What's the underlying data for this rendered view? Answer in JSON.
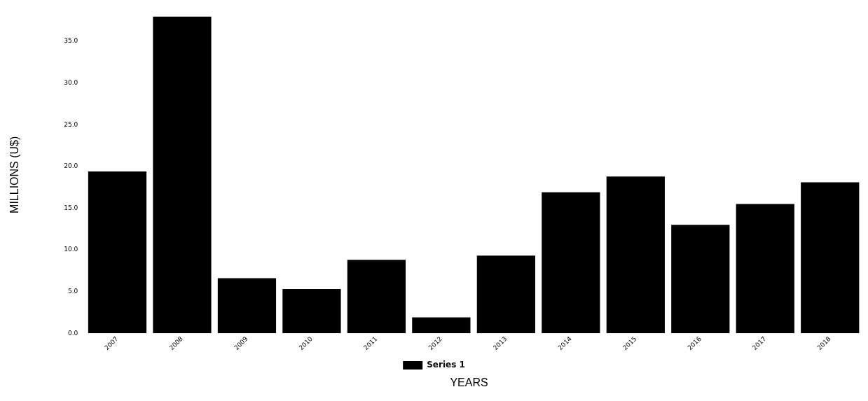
{
  "chart_data": {
    "type": "bar",
    "categories": [
      "2007",
      "2008",
      "2009",
      "2010",
      "2011",
      "2012",
      "2013",
      "2014",
      "2015",
      "2016",
      "2017",
      "2018"
    ],
    "series": [
      {
        "name": "Series 1",
        "color": "#000000",
        "values": [
          19.4,
          38.0,
          6.6,
          5.3,
          8.8,
          1.9,
          9.3,
          16.9,
          18.8,
          13.0,
          15.5,
          18.1
        ]
      }
    ],
    "xlabel": "YEARS",
    "ylabel": "MILLIONS (U$)",
    "ylim": [
      0,
      38
    ],
    "yticks": [
      {
        "value": 0,
        "label": "0.0"
      },
      {
        "value": 5,
        "label": "5.0"
      },
      {
        "value": 10,
        "label": "10.0"
      },
      {
        "value": 15,
        "label": "15.0"
      },
      {
        "value": 20,
        "label": "20.0"
      },
      {
        "value": 25,
        "label": "25.0"
      },
      {
        "value": 30,
        "label": "30.0"
      },
      {
        "value": 35,
        "label": "35.0"
      }
    ],
    "grid": false,
    "legend": "bottom"
  }
}
